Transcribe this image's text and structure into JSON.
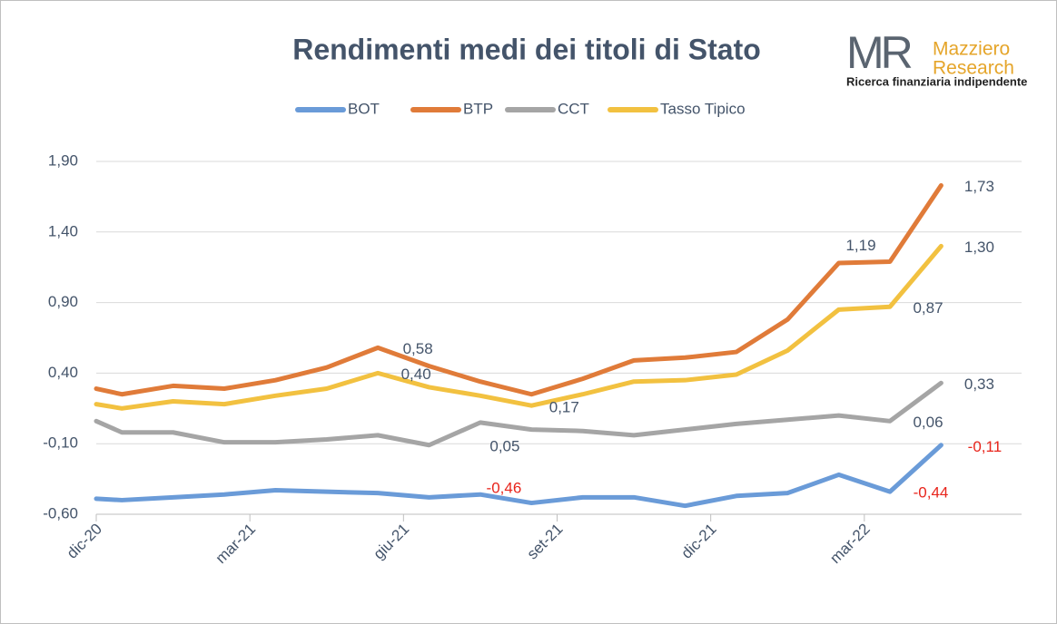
{
  "chart_data": {
    "type": "line",
    "title": "Rendimenti medi dei titoli di Stato",
    "logo": {
      "mark": "MR",
      "name_lines": [
        "Mazziero",
        "Research"
      ],
      "tagline": "Ricerca finanziaria indipendente"
    },
    "x": [
      0,
      0.5,
      1.5,
      2.5,
      3.5,
      4.5,
      5.5,
      6.5,
      7.5,
      8.5,
      9.5,
      10.5,
      11.5,
      12.5,
      13.5,
      14.5,
      15.5,
      16.5
    ],
    "xlim": [
      0,
      18
    ],
    "xticks": [
      {
        "value": 0,
        "label": "dic-20"
      },
      {
        "value": 3,
        "label": "mar-21"
      },
      {
        "value": 6,
        "label": "giu-21"
      },
      {
        "value": 9,
        "label": "set-21"
      },
      {
        "value": 12,
        "label": "dic-21"
      },
      {
        "value": 15,
        "label": "mar-22"
      }
    ],
    "ylim": [
      -0.6,
      1.9
    ],
    "yticks": [
      {
        "value": -0.6,
        "label": "-0,60"
      },
      {
        "value": -0.1,
        "label": "-0,10"
      },
      {
        "value": 0.4,
        "label": "0,40"
      },
      {
        "value": 0.9,
        "label": "0,90"
      },
      {
        "value": 1.4,
        "label": "1,40"
      },
      {
        "value": 1.9,
        "label": "1,90"
      }
    ],
    "grid": true,
    "legend": "top",
    "series": [
      {
        "name": "BOT",
        "color": "#6a9bd8",
        "label_color": "#e8251c",
        "values": [
          -0.49,
          -0.5,
          -0.48,
          -0.46,
          -0.43,
          -0.44,
          -0.45,
          -0.48,
          -0.46,
          -0.52,
          -0.48,
          -0.48,
          -0.54,
          -0.47,
          -0.45,
          -0.32,
          -0.44,
          -0.11
        ],
        "value_labels": [
          null,
          null,
          null,
          null,
          null,
          null,
          null,
          null,
          "-0,46",
          null,
          null,
          null,
          null,
          null,
          null,
          null,
          "-0,44",
          "-0,11"
        ]
      },
      {
        "name": "BTP",
        "color": "#e07b39",
        "label_color": "#44546a",
        "values": [
          0.29,
          0.25,
          0.31,
          0.29,
          0.35,
          0.44,
          0.58,
          0.45,
          0.34,
          0.25,
          0.36,
          0.49,
          0.51,
          0.55,
          0.78,
          1.18,
          1.19,
          1.73
        ],
        "value_labels": [
          null,
          null,
          null,
          null,
          null,
          null,
          "0,58",
          null,
          null,
          null,
          null,
          null,
          null,
          null,
          null,
          null,
          "1,19",
          "1,73"
        ]
      },
      {
        "name": "CCT",
        "color": "#a5a5a5",
        "label_color": "#44546a",
        "values": [
          0.06,
          -0.02,
          -0.02,
          -0.09,
          -0.09,
          -0.07,
          -0.04,
          -0.11,
          0.05,
          0.0,
          -0.01,
          -0.04,
          0.0,
          0.04,
          0.07,
          0.1,
          0.06,
          0.33
        ],
        "value_labels": [
          null,
          null,
          null,
          null,
          null,
          null,
          null,
          null,
          "0,05",
          null,
          null,
          null,
          null,
          null,
          null,
          null,
          "0,06",
          "0,33"
        ]
      },
      {
        "name": "Tasso Tipico",
        "color": "#f2c140",
        "label_color": "#44546a",
        "values": [
          0.18,
          0.15,
          0.2,
          0.18,
          0.24,
          0.29,
          0.4,
          0.3,
          0.24,
          0.17,
          0.25,
          0.34,
          0.35,
          0.39,
          0.56,
          0.85,
          0.87,
          1.3
        ],
        "value_labels": [
          null,
          null,
          null,
          null,
          null,
          null,
          "0,40",
          null,
          null,
          "0,17",
          null,
          null,
          null,
          null,
          null,
          null,
          "0,87",
          "1,30"
        ]
      }
    ]
  }
}
